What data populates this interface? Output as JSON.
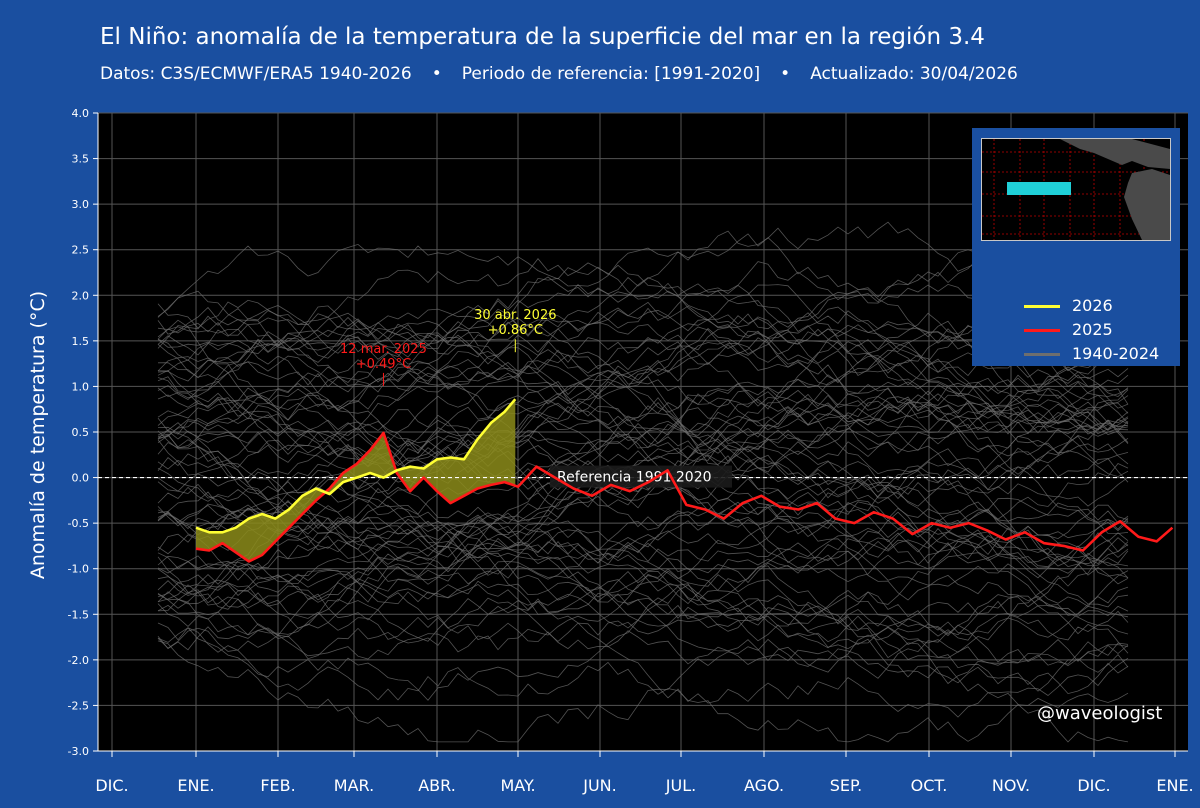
{
  "header": {
    "title": "El Niño: anomalía de la temperatura de la superficie del mar en la región 3.4",
    "subtitle_data": "Datos: C3S/ECMWF/ERA5 1940-2026",
    "subtitle_dot": "•",
    "subtitle_ref": "Periodo de referencia: [1991-2020]",
    "subtitle_updated": "Actualizado: 30/04/2026"
  },
  "watermark": "@waveologist",
  "colors": {
    "background": "#1a4fa0",
    "plot_bg": "#000000",
    "series_2026": "#ffff33",
    "series_2025": "#ff1a1a",
    "historic": "#6e6e6e",
    "fill_area": "#8c8c1a",
    "region_box": "#20d0d8"
  },
  "legend": {
    "placement": "top-right",
    "items": [
      {
        "label": "2026",
        "color": "#ffff33"
      },
      {
        "label": "2025",
        "color": "#ff1a1a"
      },
      {
        "label": "1940-2024",
        "color": "#6e6e6e"
      }
    ]
  },
  "chart_data": {
    "type": "line",
    "title": "El Niño: anomalía de la temperatura de la superficie del mar en la región 3.4",
    "ylabel": "Anomalía de temperatura (°C)",
    "xlabel": "",
    "ylim": [
      -3.0,
      4.0
    ],
    "ytick_labels": [
      "4.0",
      "3.5",
      "3.0",
      "2.5",
      "2.0",
      "1.5",
      "1.0",
      "0.5",
      "0.0",
      "-0.5",
      "-1.0",
      "-1.5",
      "-2.0",
      "-2.5",
      "-3.0"
    ],
    "xtick_labels": [
      "DIC.",
      "ENE.",
      "FEB.",
      "MAR.",
      "ABR.",
      "MAY.",
      "JUN.",
      "JUL.",
      "AGO.",
      "SEP.",
      "OCT.",
      "NOV.",
      "DIC.",
      "ENE."
    ],
    "grid": true,
    "reference_line": {
      "value": 0.0,
      "label": "Referencia 1991 2020"
    },
    "series": [
      {
        "name": "2026",
        "color": "#ffff33",
        "x": [
          "2026-01-01",
          "2026-01-06",
          "2026-01-11",
          "2026-01-16",
          "2026-01-21",
          "2026-01-26",
          "2026-01-31",
          "2026-02-05",
          "2026-02-10",
          "2026-02-15",
          "2026-02-20",
          "2026-02-25",
          "2026-03-02",
          "2026-03-07",
          "2026-03-12",
          "2026-03-17",
          "2026-03-22",
          "2026-03-27",
          "2026-04-01",
          "2026-04-06",
          "2026-04-11",
          "2026-04-16",
          "2026-04-21",
          "2026-04-26",
          "2026-04-30"
        ],
        "values": [
          -0.55,
          -0.6,
          -0.6,
          -0.55,
          -0.45,
          -0.4,
          -0.45,
          -0.35,
          -0.2,
          -0.12,
          -0.18,
          -0.05,
          0.0,
          0.05,
          0.0,
          0.08,
          0.12,
          0.1,
          0.2,
          0.22,
          0.2,
          0.42,
          0.6,
          0.72,
          0.86
        ]
      },
      {
        "name": "2025",
        "color": "#ff1a1a",
        "x": [
          "2025-01-01",
          "2025-01-06",
          "2025-01-11",
          "2025-01-16",
          "2025-01-21",
          "2025-01-26",
          "2025-01-31",
          "2025-02-05",
          "2025-02-10",
          "2025-02-15",
          "2025-02-20",
          "2025-02-25",
          "2025-03-02",
          "2025-03-07",
          "2025-03-12",
          "2025-03-17",
          "2025-03-22",
          "2025-03-27",
          "2025-04-01",
          "2025-04-06",
          "2025-04-11",
          "2025-04-16",
          "2025-04-21",
          "2025-04-26",
          "2025-05-01",
          "2025-05-08",
          "2025-05-15",
          "2025-05-22",
          "2025-05-29",
          "2025-06-05",
          "2025-06-12",
          "2025-06-19",
          "2025-06-26",
          "2025-07-03",
          "2025-07-10",
          "2025-07-17",
          "2025-07-24",
          "2025-07-31",
          "2025-08-07",
          "2025-08-14",
          "2025-08-21",
          "2025-08-28",
          "2025-09-04",
          "2025-09-11",
          "2025-09-18",
          "2025-09-25",
          "2025-10-02",
          "2025-10-09",
          "2025-10-16",
          "2025-10-23",
          "2025-10-30",
          "2025-11-06",
          "2025-11-13",
          "2025-11-20",
          "2025-11-27",
          "2025-12-04",
          "2025-12-11",
          "2025-12-18",
          "2025-12-25",
          "2025-12-31"
        ],
        "values": [
          -0.78,
          -0.8,
          -0.72,
          -0.82,
          -0.92,
          -0.85,
          -0.7,
          -0.55,
          -0.4,
          -0.25,
          -0.12,
          0.05,
          0.15,
          0.3,
          0.49,
          0.05,
          -0.15,
          0.0,
          -0.15,
          -0.28,
          -0.2,
          -0.12,
          -0.08,
          -0.05,
          -0.1,
          0.12,
          0.0,
          -0.12,
          -0.2,
          -0.08,
          -0.15,
          -0.05,
          0.08,
          -0.3,
          -0.35,
          -0.45,
          -0.28,
          -0.2,
          -0.32,
          -0.35,
          -0.28,
          -0.45,
          -0.5,
          -0.38,
          -0.45,
          -0.62,
          -0.5,
          -0.55,
          -0.5,
          -0.58,
          -0.68,
          -0.6,
          -0.72,
          -0.75,
          -0.8,
          -0.6,
          -0.48,
          -0.65,
          -0.7,
          -0.55
        ]
      }
    ],
    "annotations": [
      {
        "text_date": "12 mar. 2025",
        "text_value": "+0.49°C",
        "x": "2025-03-12",
        "y": 0.49,
        "color": "#ff1a1a"
      },
      {
        "text_date": "30 abr. 2026",
        "text_value": "+0.86°C",
        "x": "2026-04-30",
        "y": 0.86,
        "color": "#ffff33"
      }
    ]
  }
}
